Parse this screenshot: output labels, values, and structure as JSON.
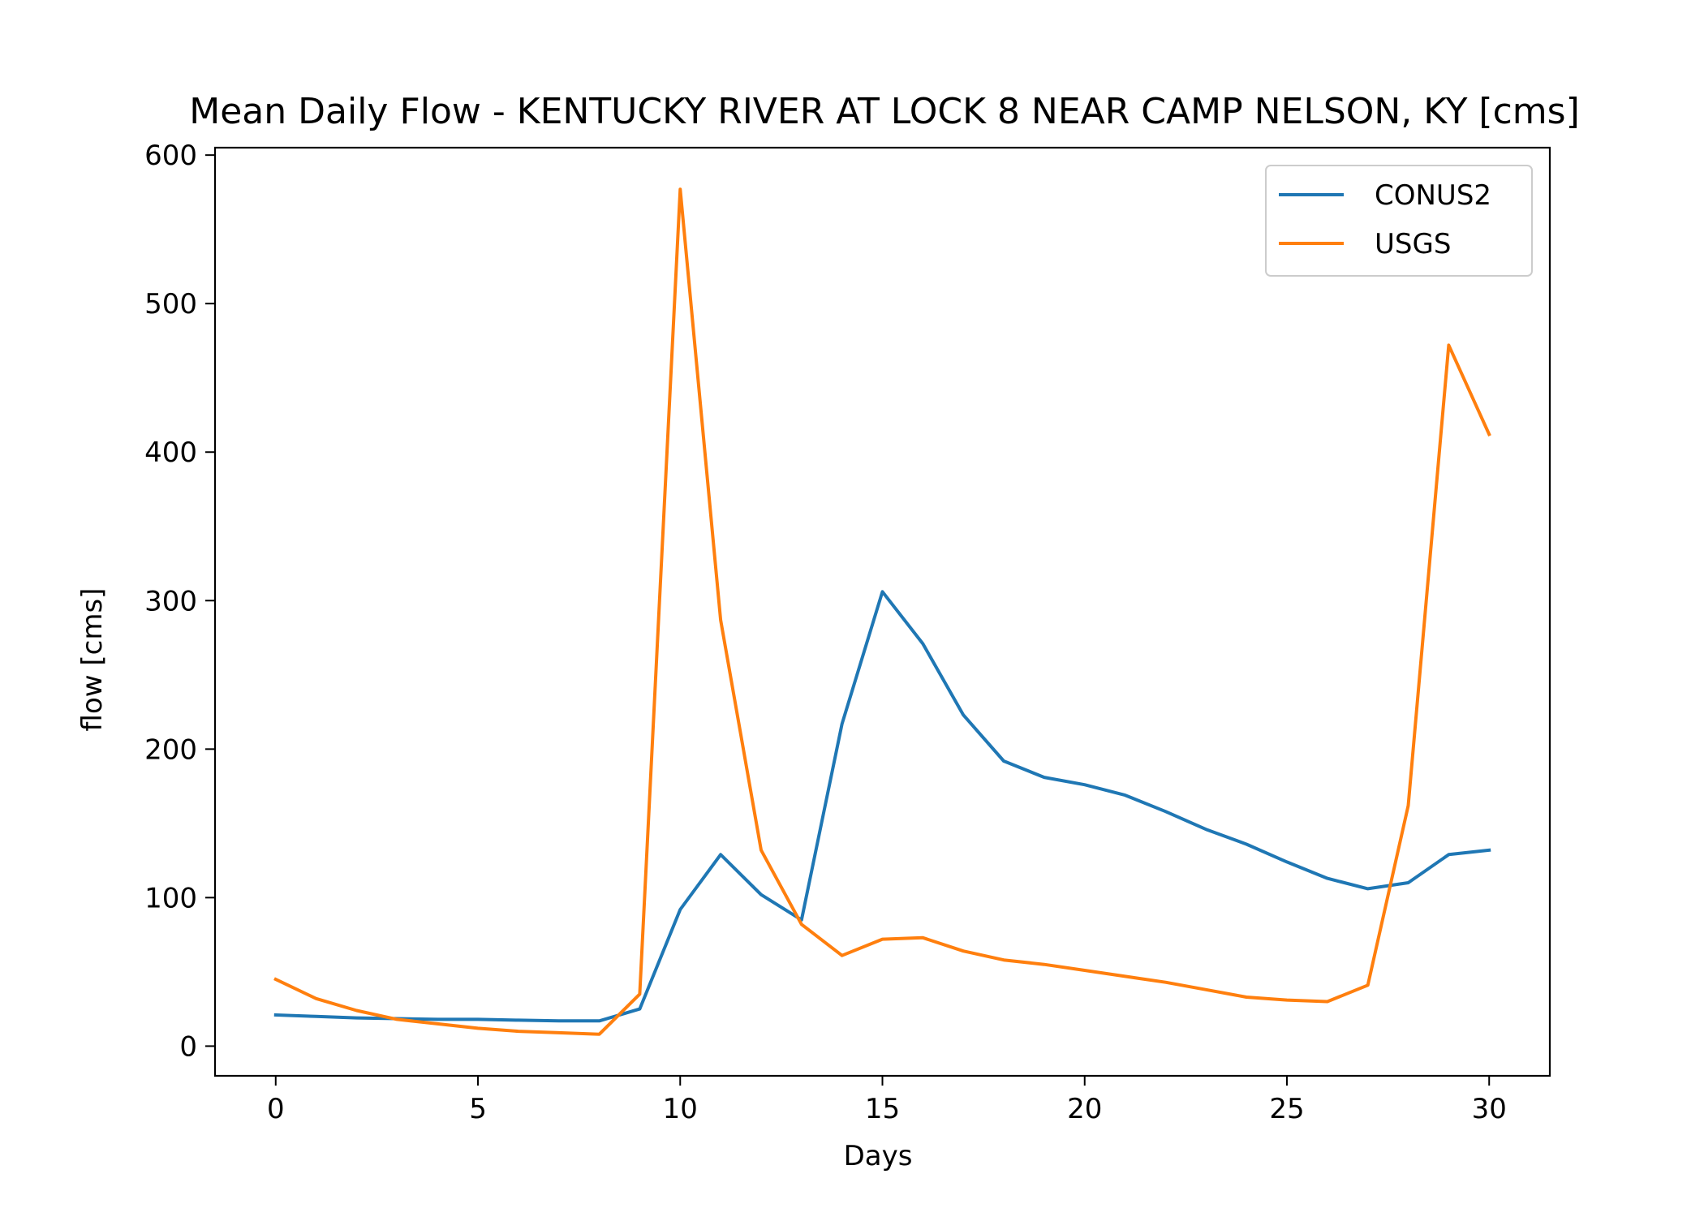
{
  "chart_data": {
    "type": "line",
    "title": "Mean Daily Flow - KENTUCKY RIVER AT LOCK 8 NEAR CAMP NELSON, KY [cms]",
    "xlabel": "Days",
    "ylabel": "flow [cms]",
    "xlim": [
      -1.5,
      31.5
    ],
    "ylim": [
      -20,
      605
    ],
    "xticks": [
      0,
      5,
      10,
      15,
      20,
      25,
      30
    ],
    "yticks": [
      0,
      100,
      200,
      300,
      400,
      500,
      600
    ],
    "grid": false,
    "legend_position": "top-right",
    "x": [
      0,
      1,
      2,
      3,
      4,
      5,
      6,
      7,
      8,
      9,
      10,
      11,
      12,
      13,
      14,
      15,
      16,
      17,
      18,
      19,
      20,
      21,
      22,
      23,
      24,
      25,
      26,
      27,
      28,
      29,
      30
    ],
    "series": [
      {
        "name": "CONUS2",
        "color": "#1f77b4",
        "values": [
          21,
          20,
          19,
          18.5,
          18,
          18,
          17.5,
          17,
          17,
          25,
          92,
          129,
          102,
          85,
          217,
          306,
          271,
          223,
          192,
          181,
          176,
          169,
          158,
          146,
          136,
          124,
          113,
          106,
          110,
          129,
          132
        ]
      },
      {
        "name": "USGS",
        "color": "#ff7f0e",
        "values": [
          45,
          32,
          24,
          18,
          15,
          12,
          10,
          9,
          8,
          35,
          577,
          287,
          132,
          82,
          61,
          72,
          73,
          64,
          58,
          55,
          51,
          47,
          43,
          38,
          33,
          31,
          30,
          41,
          162,
          472,
          412
        ]
      }
    ]
  }
}
